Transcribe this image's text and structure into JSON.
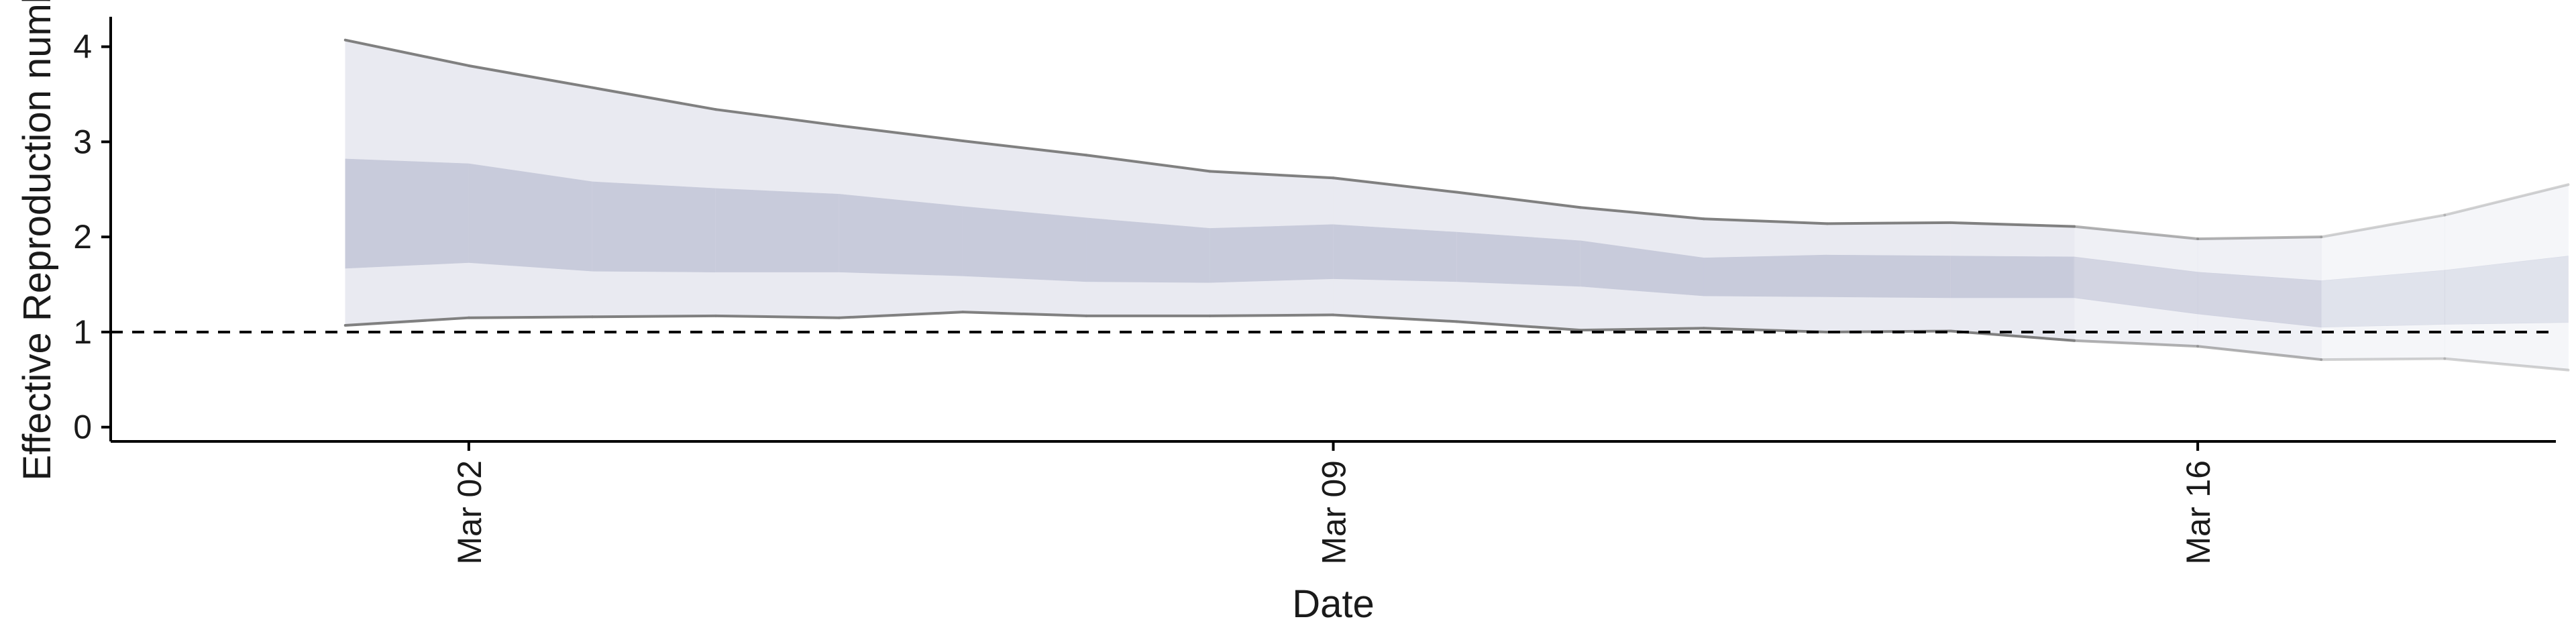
{
  "chart_data": {
    "type": "area",
    "xlabel": "Date",
    "ylabel": "Effective Reproduction number",
    "x_ticks": [
      {
        "label": "Mar 02",
        "day": 2
      },
      {
        "label": "Mar 09",
        "day": 9
      },
      {
        "label": "Mar 16",
        "day": 16
      }
    ],
    "y_ticks": [
      0,
      1,
      2,
      3,
      4
    ],
    "xlim_days": [
      -0.9,
      18.9
    ],
    "ylim": [
      -0.15,
      4.35
    ],
    "reference_line": {
      "y": 1,
      "style": "dashed"
    },
    "grid": false,
    "legend": "none",
    "colors": {
      "outer_band": "#e9eaf1",
      "inner_band": "#c8cbdb",
      "bound_line": "#808080",
      "reference": "#000000"
    },
    "series": {
      "days": [
        1,
        2,
        3,
        4,
        5,
        6,
        7,
        8,
        9,
        10,
        11,
        12,
        13,
        14,
        15,
        16,
        17,
        18,
        19
      ],
      "upper_90": [
        4.07,
        3.8,
        3.57,
        3.34,
        3.17,
        3.01,
        2.86,
        2.69,
        2.62,
        2.47,
        2.31,
        2.19,
        2.14,
        2.15,
        2.11,
        1.98,
        2.0,
        2.23,
        2.55
      ],
      "upper_50": [
        2.82,
        2.77,
        2.58,
        2.51,
        2.45,
        2.32,
        2.2,
        2.09,
        2.13,
        2.05,
        1.96,
        1.78,
        1.81,
        1.8,
        1.79,
        1.63,
        1.54,
        1.65,
        1.8
      ],
      "lower_50": [
        1.67,
        1.73,
        1.64,
        1.63,
        1.63,
        1.59,
        1.53,
        1.52,
        1.56,
        1.53,
        1.48,
        1.38,
        1.37,
        1.36,
        1.36,
        1.19,
        1.05,
        1.08,
        1.1
      ],
      "lower_90": [
        1.07,
        1.15,
        1.16,
        1.17,
        1.15,
        1.21,
        1.17,
        1.17,
        1.18,
        1.11,
        1.02,
        1.04,
        1.0,
        1.01,
        0.91,
        0.85,
        0.71,
        0.72,
        0.6
      ],
      "estimate_type": [
        "estimate",
        "estimate",
        "estimate",
        "estimate",
        "estimate",
        "estimate",
        "estimate",
        "estimate",
        "estimate",
        "estimate",
        "estimate",
        "estimate",
        "estimate",
        "estimate",
        "estimate",
        "partial",
        "partial",
        "forecast",
        "forecast"
      ]
    }
  }
}
